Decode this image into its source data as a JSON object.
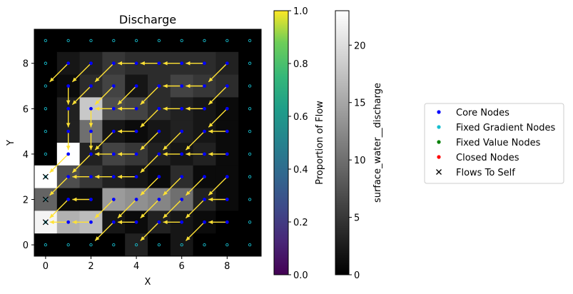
{
  "chart_data": {
    "type": "heatmap",
    "title": "Discharge",
    "xlabel": "X",
    "ylabel": "Y",
    "xlim": [
      -0.5,
      9.5
    ],
    "ylim": [
      -0.5,
      9.5
    ],
    "x_ticks": [
      "0",
      "2",
      "4",
      "6",
      "8"
    ],
    "y_ticks": [
      "0",
      "2",
      "4",
      "6",
      "8"
    ],
    "grid_shape": [
      10,
      10
    ],
    "values_rows_top_to_bottom": [
      [
        0,
        0,
        0,
        0,
        0,
        0,
        0,
        0,
        0,
        0
      ],
      [
        0,
        2,
        3,
        5,
        4,
        4,
        4,
        4,
        3,
        0
      ],
      [
        0,
        1,
        4,
        6,
        2,
        4,
        6,
        5,
        4,
        0
      ],
      [
        0,
        3,
        18,
        7,
        6,
        4,
        3,
        2,
        1,
        0
      ],
      [
        0,
        3,
        10,
        2,
        1,
        2,
        3,
        2,
        1,
        0
      ],
      [
        0,
        23,
        3,
        6,
        5,
        3,
        2,
        3,
        1,
        0
      ],
      [
        23,
        7,
        5,
        3,
        2,
        1,
        4,
        1,
        1,
        0
      ],
      [
        9,
        1,
        1,
        14,
        13,
        12,
        10,
        3,
        1,
        0
      ],
      [
        22,
        16,
        17,
        2,
        1,
        3,
        2,
        1,
        0,
        0
      ],
      [
        0,
        0,
        0,
        0,
        3,
        0,
        2,
        0,
        0,
        0
      ]
    ],
    "flows_to_self": [
      [
        0,
        3
      ],
      [
        0,
        2
      ],
      [
        0,
        1
      ]
    ],
    "arrows": [
      {
        "x": 1,
        "y": 8,
        "dir": "SW"
      },
      {
        "x": 2,
        "y": 8,
        "dir": "SW"
      },
      {
        "x": 3,
        "y": 8,
        "dir": "SW"
      },
      {
        "x": 4,
        "y": 8,
        "dir": "W"
      },
      {
        "x": 5,
        "y": 8,
        "dir": "W"
      },
      {
        "x": 6,
        "y": 8,
        "dir": "W"
      },
      {
        "x": 7,
        "y": 8,
        "dir": "W"
      },
      {
        "x": 8,
        "y": 8,
        "dir": "SW"
      },
      {
        "x": 1,
        "y": 7,
        "dir": "S"
      },
      {
        "x": 2,
        "y": 7,
        "dir": "SW"
      },
      {
        "x": 3,
        "y": 7,
        "dir": "SW"
      },
      {
        "x": 4,
        "y": 7,
        "dir": "SW"
      },
      {
        "x": 5,
        "y": 7,
        "dir": "SW"
      },
      {
        "x": 6,
        "y": 7,
        "dir": "W"
      },
      {
        "x": 7,
        "y": 7,
        "dir": "W"
      },
      {
        "x": 8,
        "y": 7,
        "dir": "SW"
      },
      {
        "x": 1,
        "y": 6,
        "dir": "S"
      },
      {
        "x": 2,
        "y": 6,
        "dir": "S"
      },
      {
        "x": 3,
        "y": 6,
        "dir": "W"
      },
      {
        "x": 4,
        "y": 6,
        "dir": "W"
      },
      {
        "x": 5,
        "y": 6,
        "dir": "SW"
      },
      {
        "x": 6,
        "y": 6,
        "dir": "W"
      },
      {
        "x": 7,
        "y": 6,
        "dir": "W"
      },
      {
        "x": 8,
        "y": 6,
        "dir": "SW"
      },
      {
        "x": 1,
        "y": 5,
        "dir": "S"
      },
      {
        "x": 2,
        "y": 5,
        "dir": "S"
      },
      {
        "x": 3,
        "y": 5,
        "dir": "SW"
      },
      {
        "x": 4,
        "y": 5,
        "dir": "W"
      },
      {
        "x": 5,
        "y": 5,
        "dir": "SW"
      },
      {
        "x": 6,
        "y": 5,
        "dir": "SW"
      },
      {
        "x": 7,
        "y": 5,
        "dir": "SW"
      },
      {
        "x": 8,
        "y": 5,
        "dir": "W"
      },
      {
        "x": 1,
        "y": 4,
        "dir": "SW"
      },
      {
        "x": 2,
        "y": 4,
        "dir": "SW"
      },
      {
        "x": 3,
        "y": 4,
        "dir": "W"
      },
      {
        "x": 4,
        "y": 4,
        "dir": "W"
      },
      {
        "x": 5,
        "y": 4,
        "dir": "SW"
      },
      {
        "x": 6,
        "y": 4,
        "dir": "W"
      },
      {
        "x": 7,
        "y": 4,
        "dir": "W"
      },
      {
        "x": 8,
        "y": 4,
        "dir": "W"
      },
      {
        "x": 1,
        "y": 3,
        "dir": "SW"
      },
      {
        "x": 2,
        "y": 3,
        "dir": "W"
      },
      {
        "x": 3,
        "y": 3,
        "dir": "W"
      },
      {
        "x": 4,
        "y": 3,
        "dir": "W"
      },
      {
        "x": 5,
        "y": 3,
        "dir": "SW"
      },
      {
        "x": 6,
        "y": 3,
        "dir": "SW"
      },
      {
        "x": 7,
        "y": 3,
        "dir": "SW"
      },
      {
        "x": 8,
        "y": 3,
        "dir": "SW"
      },
      {
        "x": 1,
        "y": 2,
        "dir": "SW"
      },
      {
        "x": 2,
        "y": 2,
        "dir": "W"
      },
      {
        "x": 3,
        "y": 2,
        "dir": "SW"
      },
      {
        "x": 4,
        "y": 2,
        "dir": "SW"
      },
      {
        "x": 5,
        "y": 2,
        "dir": "SW"
      },
      {
        "x": 6,
        "y": 2,
        "dir": "SW"
      },
      {
        "x": 7,
        "y": 2,
        "dir": "SW"
      },
      {
        "x": 8,
        "y": 2,
        "dir": "W"
      },
      {
        "x": 1,
        "y": 1,
        "dir": "W"
      },
      {
        "x": 2,
        "y": 1,
        "dir": "W"
      },
      {
        "x": 3,
        "y": 1,
        "dir": "SW"
      },
      {
        "x": 4,
        "y": 1,
        "dir": "W"
      },
      {
        "x": 5,
        "y": 1,
        "dir": "SW"
      },
      {
        "x": 6,
        "y": 1,
        "dir": "W"
      },
      {
        "x": 7,
        "y": 1,
        "dir": "SW"
      },
      {
        "x": 8,
        "y": 1,
        "dir": "W"
      }
    ],
    "colorbars": [
      {
        "label": "Proportion of Flow",
        "range": [
          0.0,
          1.0
        ],
        "colormap": "viridis",
        "ticks": [
          "0.0",
          "0.2",
          "0.4",
          "0.6",
          "0.8",
          "1.0"
        ],
        "tick_values": [
          0,
          0.2,
          0.4,
          0.6,
          0.8,
          1.0
        ]
      },
      {
        "label": "surface_water__discharge",
        "range": [
          0,
          23
        ],
        "colormap": "gray",
        "ticks": [
          "0",
          "5",
          "10",
          "15",
          "20"
        ],
        "tick_values": [
          0,
          5,
          10,
          15,
          20
        ]
      }
    ],
    "legend": {
      "placement": "right",
      "entries": [
        {
          "label": "Core Nodes",
          "marker": "dot",
          "color": "#0000ff"
        },
        {
          "label": "Fixed Gradient Nodes",
          "marker": "dot",
          "color": "#17becf"
        },
        {
          "label": "Fixed Value Nodes",
          "marker": "dot",
          "color": "#008000"
        },
        {
          "label": "Closed Nodes",
          "marker": "dot",
          "color": "#ff0000"
        },
        {
          "label": "Flows To Self",
          "marker": "x",
          "color": "#000000"
        }
      ]
    },
    "colors": {
      "arrow": "#ffe234",
      "core_node": "#0000ff",
      "boundary_node": "#17becf"
    }
  }
}
